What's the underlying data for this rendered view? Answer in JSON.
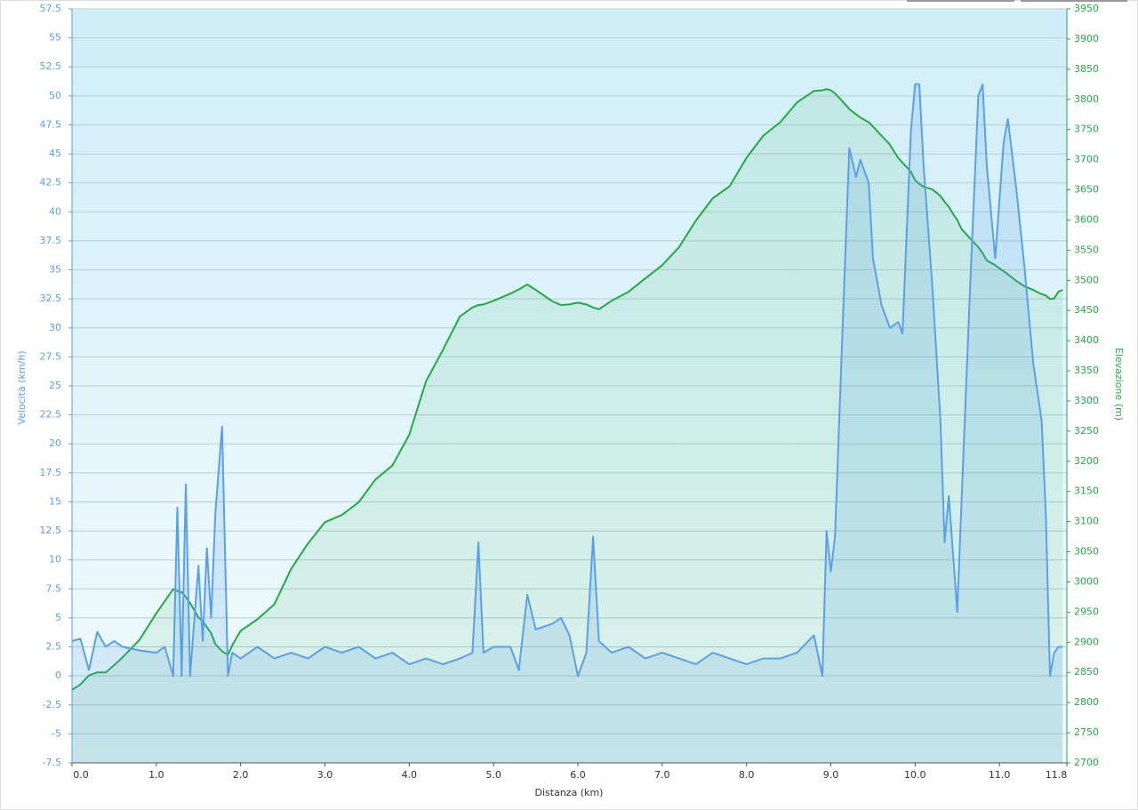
{
  "chart_data": {
    "type": "line",
    "xlabel": "Distanza  (km)",
    "ylabel": "Velocità (km/h)",
    "y2label": "Elevazione (m)",
    "grid": true,
    "xlim": [
      0,
      11.8
    ],
    "xticks": [
      {
        "value": 0,
        "label": "0.0"
      },
      {
        "value": 1,
        "label": "1.0"
      },
      {
        "value": 2,
        "label": "2.0"
      },
      {
        "value": 3,
        "label": "3.0"
      },
      {
        "value": 4,
        "label": "4.0"
      },
      {
        "value": 5,
        "label": "5.0"
      },
      {
        "value": 6,
        "label": "6.0"
      },
      {
        "value": 7,
        "label": "7.0"
      },
      {
        "value": 8,
        "label": "8.0"
      },
      {
        "value": 9,
        "label": "9.0"
      },
      {
        "value": 10,
        "label": "10.0"
      },
      {
        "value": 11,
        "label": "11.0"
      },
      11.8
    ],
    "ylim": [
      -7.5,
      57.5
    ],
    "yticks": [
      -7.5,
      -5,
      -2.5,
      0,
      2.5,
      5,
      7.5,
      10,
      12.5,
      15,
      17.5,
      20,
      22.5,
      25,
      27.5,
      30,
      32.5,
      35,
      37.5,
      40,
      42.5,
      45,
      47.5,
      50,
      52.5,
      55,
      57.5
    ],
    "y2lim": [
      2700,
      3950
    ],
    "y2ticks": [
      2700,
      2750,
      2800,
      2850,
      2900,
      2950,
      3000,
      3050,
      3100,
      3150,
      3200,
      3250,
      3300,
      3350,
      3400,
      3450,
      3500,
      3550,
      3600,
      3650,
      3700,
      3750,
      3800,
      3850,
      3900,
      3950
    ],
    "x": [
      0,
      0.1,
      0.2,
      0.3,
      0.4,
      0.5,
      0.6,
      0.8,
      1.0,
      1.1,
      1.2,
      1.25,
      1.3,
      1.35,
      1.4,
      1.5,
      1.55,
      1.6,
      1.65,
      1.7,
      1.78,
      1.85,
      1.9,
      2.0,
      2.2,
      2.4,
      2.6,
      2.8,
      3.0,
      3.2,
      3.4,
      3.6,
      3.8,
      4.0,
      4.2,
      4.4,
      4.6,
      4.75,
      4.82,
      4.88,
      5.0,
      5.2,
      5.3,
      5.4,
      5.5,
      5.7,
      5.8,
      5.9,
      6.0,
      6.1,
      6.18,
      6.25,
      6.4,
      6.6,
      6.8,
      7.0,
      7.2,
      7.4,
      7.6,
      7.8,
      8.0,
      8.2,
      8.4,
      8.6,
      8.8,
      8.9,
      8.95,
      9.0,
      9.05,
      9.15,
      9.22,
      9.3,
      9.35,
      9.45,
      9.5,
      9.6,
      9.7,
      9.8,
      9.85,
      9.95,
      10.0,
      10.05,
      10.1,
      10.2,
      10.3,
      10.35,
      10.4,
      10.45,
      10.5,
      10.55,
      10.65,
      10.75,
      10.8,
      10.85,
      10.95,
      11.05,
      11.1,
      11.2,
      11.3,
      11.4,
      11.5,
      11.55,
      11.6,
      11.65,
      11.7,
      11.75
    ],
    "series": [
      {
        "color": "#5aa0e6",
        "axis": "y",
        "values": [
          3,
          3.2,
          0.5,
          3.8,
          2.5,
          3,
          2.5,
          2.2,
          2,
          2.5,
          0,
          14.5,
          0,
          16.5,
          0,
          9.5,
          3,
          11,
          5,
          14,
          21.5,
          0,
          2,
          1.5,
          2.5,
          1.5,
          2,
          1.5,
          2.5,
          2,
          2.5,
          1.5,
          2,
          1,
          1.5,
          1,
          1.5,
          2,
          11.5,
          2,
          2.5,
          2.5,
          0.5,
          7,
          4,
          4.5,
          5,
          3.5,
          0,
          2,
          12,
          3,
          2,
          2.5,
          1.5,
          2,
          1.5,
          1,
          2,
          1.5,
          1,
          1.5,
          1.5,
          2,
          3.5,
          0,
          12.5,
          9,
          12,
          32,
          45.5,
          43,
          44.5,
          42.5,
          36,
          32,
          30,
          30.5,
          29.5,
          47,
          51,
          51,
          44,
          34,
          22,
          11.5,
          15.5,
          10.5,
          5.5,
          15,
          33,
          50,
          51,
          44,
          36,
          46,
          48,
          42,
          35,
          27,
          22,
          14,
          0,
          2,
          2.5,
          2.5
        ]
      },
      {
        "color": "#22aa44",
        "axis": "y2",
        "values": [
          2821,
          2830,
          2845,
          2850,
          2850,
          2862,
          2875,
          2904,
          2948,
          2968,
          2988,
          2985,
          2983,
          2975,
          2965,
          2941,
          2935,
          2925,
          2915,
          2897,
          2885,
          2879,
          2895,
          2919,
          2938,
          2963,
          3022,
          3064,
          3099,
          3111,
          3132,
          3170,
          3193,
          3244,
          3333,
          3385,
          3440,
          3455,
          3459,
          3460,
          3466,
          3478,
          3485,
          3493,
          3484,
          3465,
          3459,
          3460,
          3463,
          3460,
          3455,
          3452,
          3466,
          3481,
          3503,
          3525,
          3555,
          3599,
          3636,
          3656,
          3703,
          3740,
          3762,
          3795,
          3814,
          3815,
          3817,
          3815,
          3810,
          3795,
          3784,
          3775,
          3770,
          3762,
          3755,
          3740,
          3725,
          3703,
          3695,
          3680,
          3666,
          3660,
          3655,
          3651,
          3640,
          3630,
          3622,
          3610,
          3600,
          3585,
          3570,
          3555,
          3545,
          3533,
          3525,
          3515,
          3510,
          3499,
          3490,
          3484,
          3477,
          3475,
          3469,
          3470,
          3481,
          3484
        ]
      }
    ]
  }
}
